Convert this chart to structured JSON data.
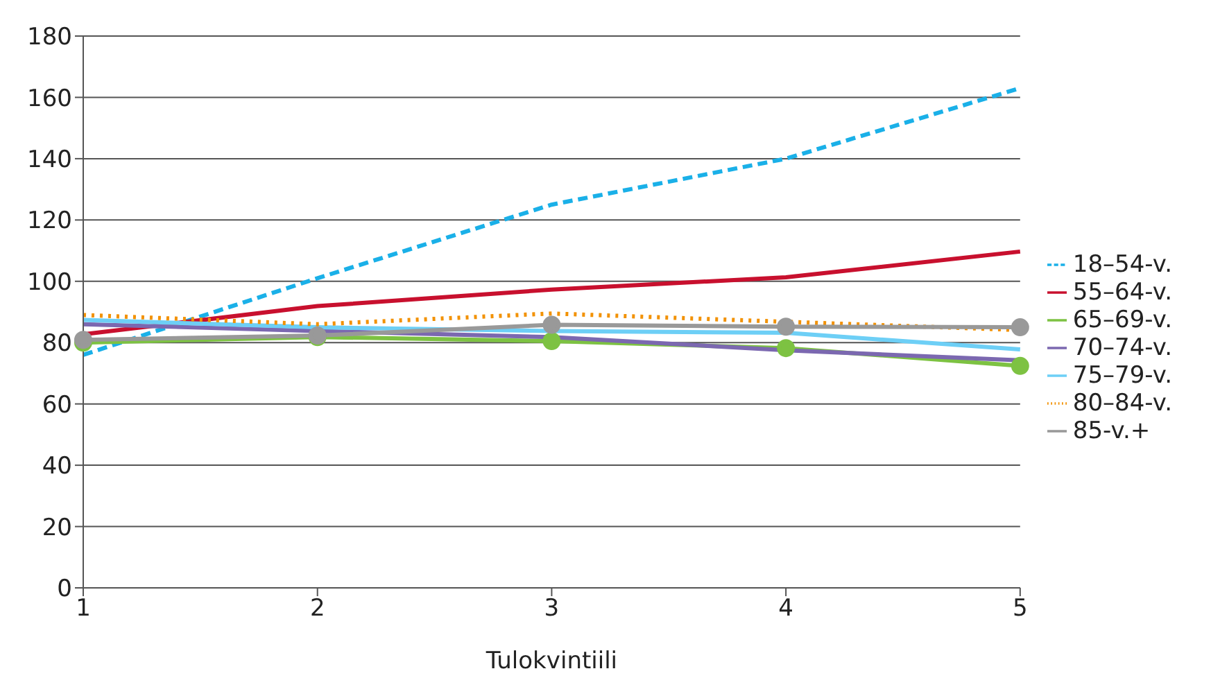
{
  "chart_data": {
    "type": "line",
    "xlabel": "Tulokvintiili",
    "categories": [
      "1",
      "2",
      "3",
      "4",
      "5"
    ],
    "ylim": [
      0,
      180
    ],
    "yticks": [
      0,
      20,
      40,
      60,
      80,
      100,
      120,
      140,
      160,
      180
    ],
    "grid": "y",
    "legend": "right",
    "series": [
      {
        "name": "18–54-v.",
        "color": "#1ab0e8",
        "line_style": "dashed",
        "marker": "none",
        "values": [
          76,
          101,
          125,
          140,
          163
        ]
      },
      {
        "name": "55–64-v.",
        "color": "#c8102e",
        "line_style": "solid",
        "marker": "none",
        "values": [
          82.7,
          91.9,
          97.3,
          101.3,
          109.7
        ]
      },
      {
        "name": "65–69-v.",
        "color": "#7dc242",
        "line_style": "solid",
        "marker": "circle",
        "values": [
          80,
          81.8,
          80.5,
          78.2,
          72.4
        ]
      },
      {
        "name": "70–74-v.",
        "color": "#7b68b0",
        "line_style": "solid",
        "marker": "none",
        "values": [
          86,
          83.8,
          81.8,
          77.5,
          74.2
        ]
      },
      {
        "name": "75–79-v.",
        "color": "#6dcff6",
        "line_style": "solid",
        "marker": "none",
        "values": [
          87.4,
          85,
          83.8,
          83.2,
          77.8
        ]
      },
      {
        "name": "80–84-v.",
        "color": "#f29100",
        "line_style": "dotted",
        "marker": "none",
        "values": [
          89,
          86,
          89.5,
          86.8,
          84.1
        ]
      },
      {
        "name": "85-v.+",
        "color": "#999999",
        "line_style": "solid",
        "marker": "circle",
        "values": [
          80.9,
          82.3,
          85.8,
          85.2,
          85
        ]
      }
    ]
  }
}
